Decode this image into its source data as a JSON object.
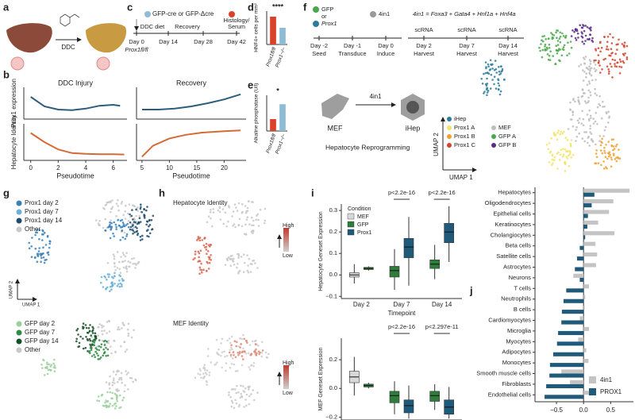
{
  "figure": {
    "labels": [
      "a",
      "b",
      "c",
      "d",
      "e",
      "f",
      "g",
      "h",
      "i",
      "j"
    ],
    "a": {
      "treatment": "DDC"
    },
    "c": {
      "vectors": "GFP-cre or GFP-Δcre",
      "timeline": [
        {
          "day": "Day 0",
          "note": "Prox1fl/fl"
        },
        {
          "day": "Day 14",
          "above": "DDC diet"
        },
        {
          "day": "Day 28",
          "above": "Recovery"
        },
        {
          "day": "Day 42",
          "above": [
            "Histology/",
            "Serum"
          ]
        }
      ]
    },
    "f": {
      "vectors": [
        "GFP",
        "or",
        "Prox1"
      ],
      "factor": "4in1",
      "definition": "4in1 = Foxa3 + Gata4 + Hnf1a + Hnf4a",
      "timeline": [
        {
          "day": "Day -2",
          "step": "Seed"
        },
        {
          "day": "Day -1",
          "step": "Transduce"
        },
        {
          "day": "Day 0",
          "step": "Induce"
        },
        {
          "top": "scRNA",
          "day": "Day 2",
          "step": "Harvest"
        },
        {
          "top": "scRNA",
          "day": "Day 7",
          "step": "Harvest"
        },
        {
          "top": "scRNA",
          "day": "Day 14",
          "step": "Harvest"
        }
      ],
      "from": "MEF",
      "arrow": "4in1",
      "to": "iHep",
      "caption": "Hepatocyte Reprogramming",
      "umap_y": "UMAP 2",
      "umap_x": "UMAP 1",
      "legend": [
        {
          "name": "iHep",
          "color": "#2a7c9c"
        },
        {
          "name": "Prox1 A",
          "color": "#f1e36a"
        },
        {
          "name": "Prox1 B",
          "color": "#f0a030"
        },
        {
          "name": "Prox1 C",
          "color": "#d0452e"
        },
        {
          "name": "MEF",
          "color": "#bdbdbd"
        },
        {
          "name": "GFP A",
          "color": "#49a84a"
        },
        {
          "name": "GFP B",
          "color": "#5b2a86"
        }
      ]
    },
    "g": {
      "prox1_legend": [
        {
          "name": "Prox1 day 2",
          "color": "#3a80b8"
        },
        {
          "name": "Prox1 day 7",
          "color": "#6bb0d8"
        },
        {
          "name": "Prox1 day 14",
          "color": "#1c4b6e"
        },
        {
          "name": "Other",
          "color": "#c8c8c8"
        }
      ],
      "gfp_legend": [
        {
          "name": "GFP day 2",
          "color": "#9ccf9c"
        },
        {
          "name": "GFP day 7",
          "color": "#2e8b44"
        },
        {
          "name": "GFP day 14",
          "color": "#174f27"
        },
        {
          "name": "Other",
          "color": "#c8c8c8"
        }
      ],
      "umap_y": "UMAP 2",
      "umap_x": "UMAP 1"
    },
    "h": {
      "top": "Hepatocyte Identity",
      "bottom": "MEF Identity",
      "high": "High",
      "low": "Low"
    }
  },
  "chart_data": [
    {
      "type": "line",
      "title": "DDC Injury",
      "ylabel": "Prox1 expression",
      "x": [
        0,
        1,
        2,
        3,
        4,
        5,
        6,
        6.5
      ],
      "values": [
        0.7,
        0.4,
        0.3,
        0.28,
        0.33,
        0.42,
        0.45,
        0.42
      ],
      "color": "#2b5d7d",
      "xlim": [
        -0.5,
        7
      ],
      "ylim": [
        0,
        1
      ]
    },
    {
      "type": "line",
      "title": "Recovery",
      "x": [
        5,
        8,
        11,
        14,
        17,
        20,
        23
      ],
      "values": [
        0.3,
        0.3,
        0.33,
        0.4,
        0.5,
        0.62,
        0.78
      ],
      "color": "#2b5d7d",
      "xlim": [
        4,
        24
      ],
      "ylim": [
        0,
        1
      ]
    },
    {
      "type": "line",
      "ylabel": "Hepatocyte Identity",
      "xlabel": "Pseudotime",
      "x": [
        0,
        1,
        2,
        3,
        4,
        5,
        6,
        6.8
      ],
      "values": [
        0.75,
        0.5,
        0.3,
        0.2,
        0.18,
        0.17,
        0.17,
        0.16
      ],
      "color": "#d46a36",
      "xlim": [
        -0.5,
        7
      ],
      "ylim": [
        0,
        1
      ],
      "xticks": [
        0,
        2,
        4,
        6
      ]
    },
    {
      "type": "line",
      "xlabel": "Pseudotime",
      "x": [
        5,
        7,
        10,
        13,
        16,
        20,
        23
      ],
      "values": [
        0.1,
        0.4,
        0.6,
        0.7,
        0.76,
        0.8,
        0.82
      ],
      "color": "#d46a36",
      "xlim": [
        4,
        24
      ],
      "ylim": [
        0,
        1
      ],
      "xticks": [
        5,
        10,
        15,
        20
      ]
    },
    {
      "type": "bar",
      "ylabel": "HNF4+ cells per mm²",
      "categories": [
        "Prox1fl/fl",
        "Prox1−/−"
      ],
      "values": [
        1.0,
        0.6
      ],
      "colors": [
        "#d9412b",
        "#8fbcd4"
      ],
      "ylim": [
        0,
        1.2
      ],
      "annotation": "****"
    },
    {
      "type": "bar",
      "ylabel": "Alkaline phosphatase (U/l)",
      "categories": [
        "Prox1fl/fl",
        "Prox1−/−"
      ],
      "values": [
        0.4,
        0.9
      ],
      "colors": [
        "#d9412b",
        "#8fbcd4"
      ],
      "ylim": [
        0,
        1.2
      ],
      "annotation": "*"
    },
    {
      "type": "box",
      "ylabel": "Hepatocyte Geneset Expression",
      "xlabel": "Timepoint",
      "legend_title": "Condition",
      "categories": [
        "Day 2",
        "Day 7",
        "Day 14"
      ],
      "ylim": [
        -0.11,
        0.33
      ],
      "yticks": [
        {
          "value": -0.1,
          "label": "−0.1"
        },
        {
          "value": 0,
          "label": "0.0"
        },
        0.1,
        0.2,
        0.3
      ],
      "annotations": [
        "p<2.2e-16",
        "p<2.2e-16"
      ],
      "series": [
        {
          "name": "MEF",
          "color": "#d9d9d9",
          "values": [
            {
              "min": -0.04,
              "q1": -0.01,
              "median": 0.0,
              "q3": 0.01,
              "max": 0.05
            },
            null,
            null
          ]
        },
        {
          "name": "GFP",
          "color": "#2e7d3a",
          "values": [
            {
              "min": 0.02,
              "q1": 0.025,
              "median": 0.03,
              "q3": 0.035,
              "max": 0.04
            },
            {
              "min": -0.07,
              "q1": -0.01,
              "median": 0.02,
              "q3": 0.04,
              "max": 0.12
            },
            {
              "min": -0.02,
              "q1": 0.03,
              "median": 0.05,
              "q3": 0.07,
              "max": 0.14
            }
          ]
        },
        {
          "name": "Prox1",
          "color": "#1f5a7a",
          "values": [
            null,
            {
              "min": -0.05,
              "q1": 0.08,
              "median": 0.13,
              "q3": 0.17,
              "max": 0.27
            },
            {
              "min": 0.06,
              "q1": 0.15,
              "median": 0.2,
              "q3": 0.24,
              "max": 0.32
            }
          ]
        }
      ]
    },
    {
      "type": "box",
      "ylabel": "MEF Geneset Expression",
      "ylim": [
        -0.22,
        0.35
      ],
      "yticks": [
        {
          "value": -0.2,
          "label": "−0.2"
        },
        {
          "value": 0,
          "label": "0.0"
        },
        0.2
      ],
      "annotations": [
        "p<2.2e-16",
        "p<2.297e-11"
      ],
      "series": [
        {
          "color": "#d9d9d9",
          "values": [
            {
              "min": -0.05,
              "q1": 0.04,
              "median": 0.08,
              "q3": 0.12,
              "max": 0.22
            },
            null,
            null
          ]
        },
        {
          "color": "#2e7d3a",
          "values": [
            {
              "min": 0.0,
              "q1": 0.01,
              "median": 0.02,
              "q3": 0.03,
              "max": 0.04
            },
            {
              "min": -0.18,
              "q1": -0.1,
              "median": -0.05,
              "q3": -0.02,
              "max": 0.05
            },
            {
              "min": -0.15,
              "q1": -0.09,
              "median": -0.05,
              "q3": -0.02,
              "max": 0.03
            }
          ]
        },
        {
          "color": "#1f5a7a",
          "values": [
            null,
            {
              "min": -0.21,
              "q1": -0.17,
              "median": -0.12,
              "q3": -0.08,
              "max": 0.02
            },
            {
              "min": -0.21,
              "q1": -0.18,
              "median": -0.13,
              "q3": -0.08,
              "max": 0.01
            }
          ]
        }
      ]
    },
    {
      "type": "bar",
      "orientation": "horizontal",
      "categories": [
        "Hepatocytes",
        "Oligodendrocytes",
        "Epithelial cells",
        "Keratinocytes",
        "Cholangiocytes",
        "Beta cells",
        "Satellite cells",
        "Astrocytes",
        "Neurons",
        "T cells",
        "Neutrophils",
        "B cells",
        "Cardiomyocytes",
        "Microglia",
        "Myocytes",
        "Adipocytes",
        "Monocytes",
        "Smooth muscle cells",
        "Fibroblasts",
        "Endothelial cells"
      ],
      "xlim": [
        -0.75,
        0.92
      ],
      "xticks": [
        {
          "value": -0.5,
          "label": "−0.5"
        },
        {
          "value": 0,
          "label": "0.0"
        },
        0.5
      ],
      "series": [
        {
          "name": "4in1",
          "color": "#c4c4c4",
          "values": [
            0.85,
            0.55,
            0.47,
            0.27,
            0.57,
            0.22,
            0.25,
            0.23,
            -0.19,
            0.1,
            0.03,
            0.02,
            -0.07,
            0.1,
            -0.1,
            0.05,
            0.09,
            -0.41,
            -0.25,
            0.12
          ]
        },
        {
          "name": "PROX1",
          "color": "#1f5a7a",
          "values": [
            0.2,
            0.15,
            0.08,
            0.07,
            0.03,
            -0.07,
            -0.12,
            -0.16,
            -0.07,
            -0.32,
            -0.37,
            -0.4,
            -0.41,
            -0.47,
            -0.49,
            -0.56,
            -0.62,
            -0.63,
            -0.69,
            -0.72
          ]
        }
      ]
    }
  ]
}
